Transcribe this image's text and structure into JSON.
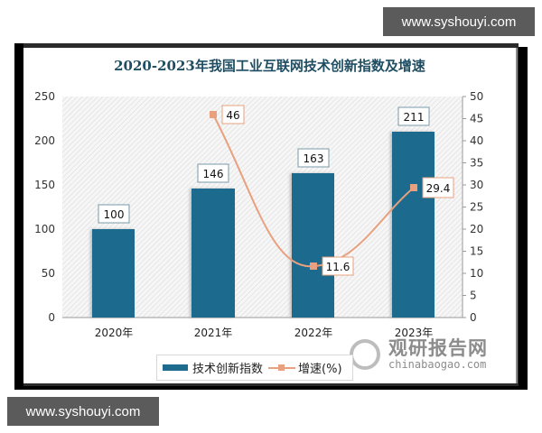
{
  "watermarks": {
    "top": "www.syshouyi.com",
    "bottom": "www.syshouyi.com"
  },
  "brand": {
    "name_cn": "观研报告网",
    "domain": "chinabaogao.com"
  },
  "chart": {
    "title": "2020-2023年我国工业互联网技术创新指数及增速",
    "left_ticks": [
      "0",
      "50",
      "100",
      "150",
      "200",
      "250"
    ],
    "right_ticks": [
      "0",
      "5",
      "10",
      "15",
      "20",
      "25",
      "30",
      "35",
      "40",
      "45",
      "50"
    ],
    "categories": [
      "2020年",
      "2021年",
      "2022年",
      "2023年"
    ],
    "bar_labels": [
      "100",
      "146",
      "163",
      "211"
    ],
    "line_labels": [
      "46",
      "11.6",
      "29.4"
    ],
    "legend": {
      "bar": "技术创新指数",
      "line": "增速(%)"
    },
    "colors": {
      "bar": "#1f6b8e",
      "line": "#e8a07e",
      "title": "#1f4e63"
    }
  },
  "chart_data": {
    "type": "bar",
    "title": "2020-2023年我国工业互联网技术创新指数及增速",
    "categories": [
      "2020年",
      "2021年",
      "2022年",
      "2023年"
    ],
    "series": [
      {
        "name": "技术创新指数",
        "type": "bar",
        "axis": "left",
        "values": [
          100,
          146,
          163,
          211
        ]
      },
      {
        "name": "增速(%)",
        "type": "line",
        "axis": "right",
        "values": [
          null,
          46,
          11.6,
          29.4
        ]
      }
    ],
    "xlabel": "",
    "ylabel": "",
    "ylim": [
      0,
      250
    ],
    "y2lim": [
      0,
      50
    ],
    "yticks": [
      0,
      50,
      100,
      150,
      200,
      250
    ],
    "y2ticks": [
      0,
      5,
      10,
      15,
      20,
      25,
      30,
      35,
      40,
      45,
      50
    ],
    "legend_position": "bottom",
    "grid": false
  }
}
